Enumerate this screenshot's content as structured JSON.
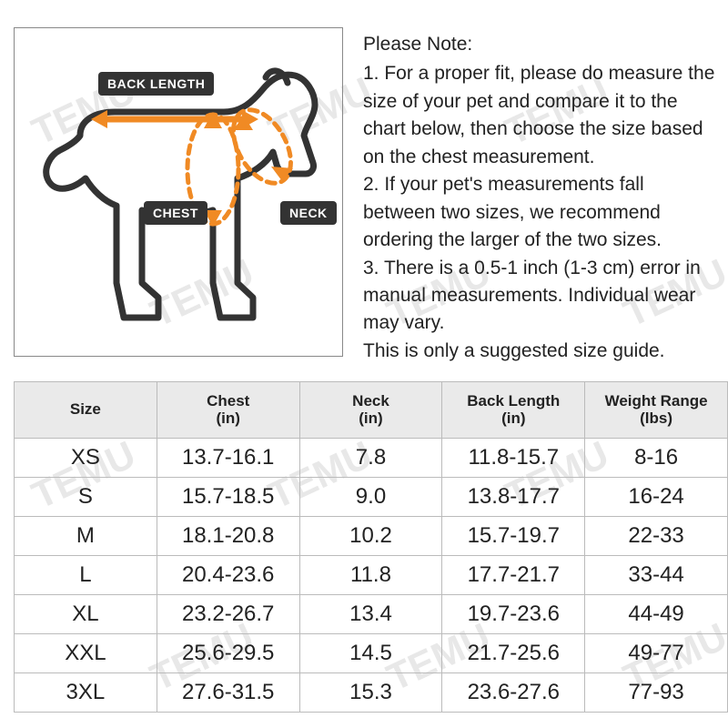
{
  "watermark": {
    "text": "TEMU",
    "color": "#e8e8e8",
    "fontsize": 42,
    "rotation": -25
  },
  "diagram": {
    "labels": {
      "back_length": "BACK LENGTH",
      "chest": "CHEST",
      "neck": "NECK"
    },
    "colors": {
      "outline": "#333333",
      "measure": "#f08a24",
      "label_bg": "#333333",
      "label_text": "#ffffff"
    },
    "label_fontsize": 14
  },
  "notes": {
    "heading": "Please Note:",
    "items": [
      "1. For a proper fit, please do measure the size of your pet and compare it to the chart below, then choose the size based on the chest measurement.",
      "2. If your pet's measurements fall between two sizes, we recommend ordering the larger of the two sizes.",
      "3. There is a 0.5-1 inch (1-3 cm) error in manual measurements. Individual wear may vary."
    ],
    "footer": "This is only a suggested size guide.",
    "fontsize": 21,
    "color": "#222222"
  },
  "table": {
    "header_bg": "#eaeaea",
    "border_color": "#bbbbbb",
    "header_fontsize": 17,
    "cell_fontsize": 24,
    "columns": [
      {
        "title": "Size",
        "unit": ""
      },
      {
        "title": "Chest",
        "unit": "(in)"
      },
      {
        "title": "Neck",
        "unit": "(in)"
      },
      {
        "title": "Back Length",
        "unit": "(in)"
      },
      {
        "title": "Weight Range",
        "unit": "(lbs)"
      }
    ],
    "rows": [
      {
        "size": "XS",
        "chest": "13.7-16.1",
        "neck": "7.8",
        "back": "11.8-15.7",
        "weight": "8-16"
      },
      {
        "size": "S",
        "chest": "15.7-18.5",
        "neck": "9.0",
        "back": "13.8-17.7",
        "weight": "16-24"
      },
      {
        "size": "M",
        "chest": "18.1-20.8",
        "neck": "10.2",
        "back": "15.7-19.7",
        "weight": "22-33"
      },
      {
        "size": "L",
        "chest": "20.4-23.6",
        "neck": "11.8",
        "back": "17.7-21.7",
        "weight": "33-44"
      },
      {
        "size": "XL",
        "chest": "23.2-26.7",
        "neck": "13.4",
        "back": "19.7-23.6",
        "weight": "44-49"
      },
      {
        "size": "XXL",
        "chest": "25.6-29.5",
        "neck": "14.5",
        "back": "21.7-25.6",
        "weight": "49-77"
      },
      {
        "size": "3XL",
        "chest": "27.6-31.5",
        "neck": "15.3",
        "back": "23.6-27.6",
        "weight": "77-93"
      }
    ]
  }
}
